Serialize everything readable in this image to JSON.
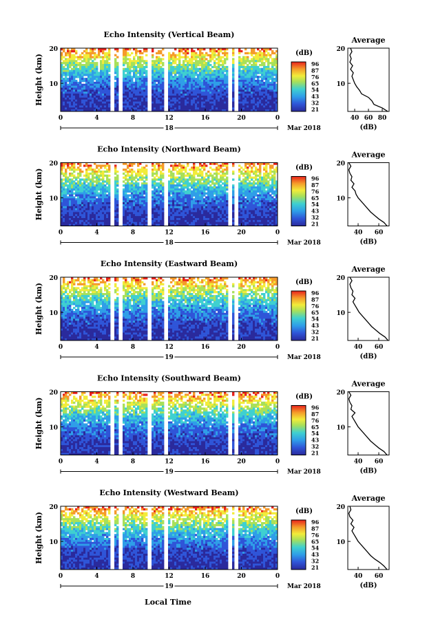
{
  "figure": {
    "date_label": "Mar 2018",
    "bottom_xlabel": "Local Time",
    "cbar_unit": "(dB)",
    "avg_title": "Average",
    "avg_xlabel": "(dB)",
    "ylabel": "Height (km)"
  },
  "chart_data": [
    {
      "type": "heatmap",
      "title": "Echo Intensity (Vertical Beam)",
      "ylabel": "Height (km)",
      "x_ticks": [
        "0",
        "4",
        "8",
        "12",
        "16",
        "20",
        "0"
      ],
      "y_ticks": [
        "10",
        "20"
      ],
      "day_label": "18",
      "date_label": "Mar 2018",
      "colorbar_ticks": [
        "96",
        "87",
        "76",
        "65",
        "54",
        "43",
        "32",
        "21"
      ],
      "colorbar_unit": "(dB)",
      "xlim": [
        0,
        24
      ],
      "ylim": [
        2,
        20
      ],
      "data_gaps_hours": [
        [
          5.5,
          6.0
        ],
        [
          6.4,
          6.9
        ],
        [
          9.6,
          10.0
        ],
        [
          11.5,
          11.9
        ],
        [
          18.6,
          18.9
        ],
        [
          19.3,
          19.7
        ]
      ],
      "average_profile": {
        "title": "Average",
        "xlabel": "(dB)",
        "x_ticks": [
          "40",
          "60",
          "80"
        ],
        "xlim": [
          30,
          90
        ],
        "y_ticks": [
          "10",
          "20"
        ],
        "ylim": [
          2,
          20
        ],
        "height_km": [
          2,
          2.5,
          3,
          4,
          5,
          6,
          7,
          8,
          9,
          10,
          11,
          12,
          13,
          14,
          15,
          16,
          17,
          18,
          19,
          20
        ],
        "db": [
          88,
          84,
          80,
          68,
          65,
          60,
          50,
          47,
          43,
          40,
          38,
          36,
          38,
          34,
          37,
          33,
          35,
          33,
          36,
          34
        ]
      }
    },
    {
      "type": "heatmap",
      "title": "Echo Intensity (Northward Beam)",
      "ylabel": "Height (km)",
      "x_ticks": [
        "0",
        "4",
        "8",
        "12",
        "16",
        "20",
        "0"
      ],
      "y_ticks": [
        "10",
        "20"
      ],
      "day_label": "18",
      "date_label": "Mar 2018",
      "colorbar_ticks": [
        "96",
        "87",
        "76",
        "65",
        "54",
        "43",
        "32",
        "21"
      ],
      "colorbar_unit": "(dB)",
      "xlim": [
        0,
        24
      ],
      "ylim": [
        2,
        20
      ],
      "data_gaps_hours": [
        [
          5.5,
          6.0
        ],
        [
          6.4,
          6.9
        ],
        [
          9.6,
          10.0
        ],
        [
          11.5,
          11.9
        ],
        [
          18.6,
          18.9
        ],
        [
          19.3,
          19.7
        ]
      ],
      "average_profile": {
        "title": "Average",
        "xlabel": "(dB)",
        "x_ticks": [
          "40",
          "60"
        ],
        "xlim": [
          30,
          70
        ],
        "y_ticks": [
          "10",
          "20"
        ],
        "ylim": [
          2,
          20
        ],
        "height_km": [
          2,
          3,
          4,
          5,
          6,
          7,
          8,
          9,
          10,
          11,
          12,
          13,
          14,
          15,
          16,
          17,
          18,
          19,
          20
        ],
        "db": [
          68,
          65,
          60,
          56,
          52,
          49,
          46,
          43,
          40,
          38,
          37,
          34,
          36,
          33,
          34,
          32,
          31,
          33,
          31
        ]
      }
    },
    {
      "type": "heatmap",
      "title": "Echo Intensity (Eastward Beam)",
      "ylabel": "Height (km)",
      "x_ticks": [
        "0",
        "4",
        "8",
        "12",
        "16",
        "20",
        "0"
      ],
      "y_ticks": [
        "10",
        "20"
      ],
      "day_label": "19",
      "date_label": "Mar 2018",
      "colorbar_ticks": [
        "96",
        "87",
        "76",
        "65",
        "54",
        "43",
        "32",
        "21"
      ],
      "colorbar_unit": "(dB)",
      "xlim": [
        0,
        24
      ],
      "ylim": [
        2,
        20
      ],
      "data_gaps_hours": [
        [
          5.5,
          6.0
        ],
        [
          6.4,
          6.9
        ],
        [
          9.6,
          10.0
        ],
        [
          11.5,
          11.9
        ],
        [
          18.6,
          18.9
        ],
        [
          19.3,
          19.7
        ]
      ],
      "average_profile": {
        "title": "Average",
        "xlabel": "(dB)",
        "x_ticks": [
          "40",
          "60"
        ],
        "xlim": [
          30,
          70
        ],
        "y_ticks": [
          "10",
          "20"
        ],
        "ylim": [
          2,
          20
        ],
        "height_km": [
          2,
          3,
          4,
          5,
          6,
          7,
          8,
          9,
          10,
          11,
          12,
          13,
          14,
          15,
          16,
          17,
          18,
          19,
          20
        ],
        "db": [
          69,
          66,
          61,
          57,
          53,
          50,
          47,
          44,
          41,
          39,
          37,
          35,
          37,
          34,
          35,
          33,
          32,
          34,
          32
        ]
      }
    },
    {
      "type": "heatmap",
      "title": "Echo Intensity (Southward Beam)",
      "ylabel": "Height (km)",
      "x_ticks": [
        "0",
        "4",
        "8",
        "12",
        "16",
        "20",
        "0"
      ],
      "y_ticks": [
        "10",
        "20"
      ],
      "day_label": "19",
      "date_label": "Mar 2018",
      "colorbar_ticks": [
        "96",
        "87",
        "76",
        "65",
        "54",
        "43",
        "32",
        "21"
      ],
      "colorbar_unit": "(dB)",
      "xlim": [
        0,
        24
      ],
      "ylim": [
        2,
        20
      ],
      "data_gaps_hours": [
        [
          5.5,
          6.0
        ],
        [
          6.4,
          6.9
        ],
        [
          9.6,
          10.0
        ],
        [
          11.5,
          11.9
        ],
        [
          18.6,
          18.9
        ],
        [
          19.3,
          19.7
        ]
      ],
      "average_profile": {
        "title": "Average",
        "xlabel": "(dB)",
        "x_ticks": [
          "40",
          "60"
        ],
        "xlim": [
          30,
          70
        ],
        "y_ticks": [
          "10",
          "20"
        ],
        "ylim": [
          2,
          20
        ],
        "height_km": [
          2,
          3,
          4,
          5,
          6,
          7,
          8,
          9,
          10,
          11,
          12,
          13,
          14,
          15,
          16,
          17,
          18,
          19,
          20
        ],
        "db": [
          68,
          65,
          60,
          56,
          52,
          49,
          46,
          43,
          40,
          38,
          36,
          34,
          37,
          33,
          34,
          32,
          31,
          33,
          31
        ]
      }
    },
    {
      "type": "heatmap",
      "title": "Echo Intensity (Westward Beam)",
      "ylabel": "Height (km)",
      "x_ticks": [
        "0",
        "4",
        "8",
        "12",
        "16",
        "20",
        "0"
      ],
      "y_ticks": [
        "10",
        "20"
      ],
      "day_label": "19",
      "date_label": "Mar 2018",
      "colorbar_ticks": [
        "96",
        "87",
        "76",
        "65",
        "54",
        "43",
        "32",
        "21"
      ],
      "colorbar_unit": "(dB)",
      "xlim": [
        0,
        24
      ],
      "ylim": [
        2,
        20
      ],
      "data_gaps_hours": [
        [
          5.5,
          6.0
        ],
        [
          6.4,
          6.9
        ],
        [
          9.6,
          10.0
        ],
        [
          11.5,
          11.9
        ],
        [
          18.6,
          18.9
        ],
        [
          19.3,
          19.7
        ]
      ],
      "average_profile": {
        "title": "Average",
        "xlabel": "(dB)",
        "x_ticks": [
          "40",
          "60"
        ],
        "xlim": [
          30,
          70
        ],
        "y_ticks": [
          "10",
          "20"
        ],
        "ylim": [
          2,
          20
        ],
        "height_km": [
          2,
          3,
          4,
          5,
          6,
          7,
          8,
          9,
          10,
          11,
          12,
          13,
          14,
          15,
          16,
          17,
          18,
          19,
          20
        ],
        "db": [
          68,
          65,
          61,
          56,
          52,
          49,
          46,
          43,
          40,
          38,
          36,
          34,
          36,
          33,
          35,
          32,
          31,
          33,
          32
        ]
      }
    }
  ]
}
